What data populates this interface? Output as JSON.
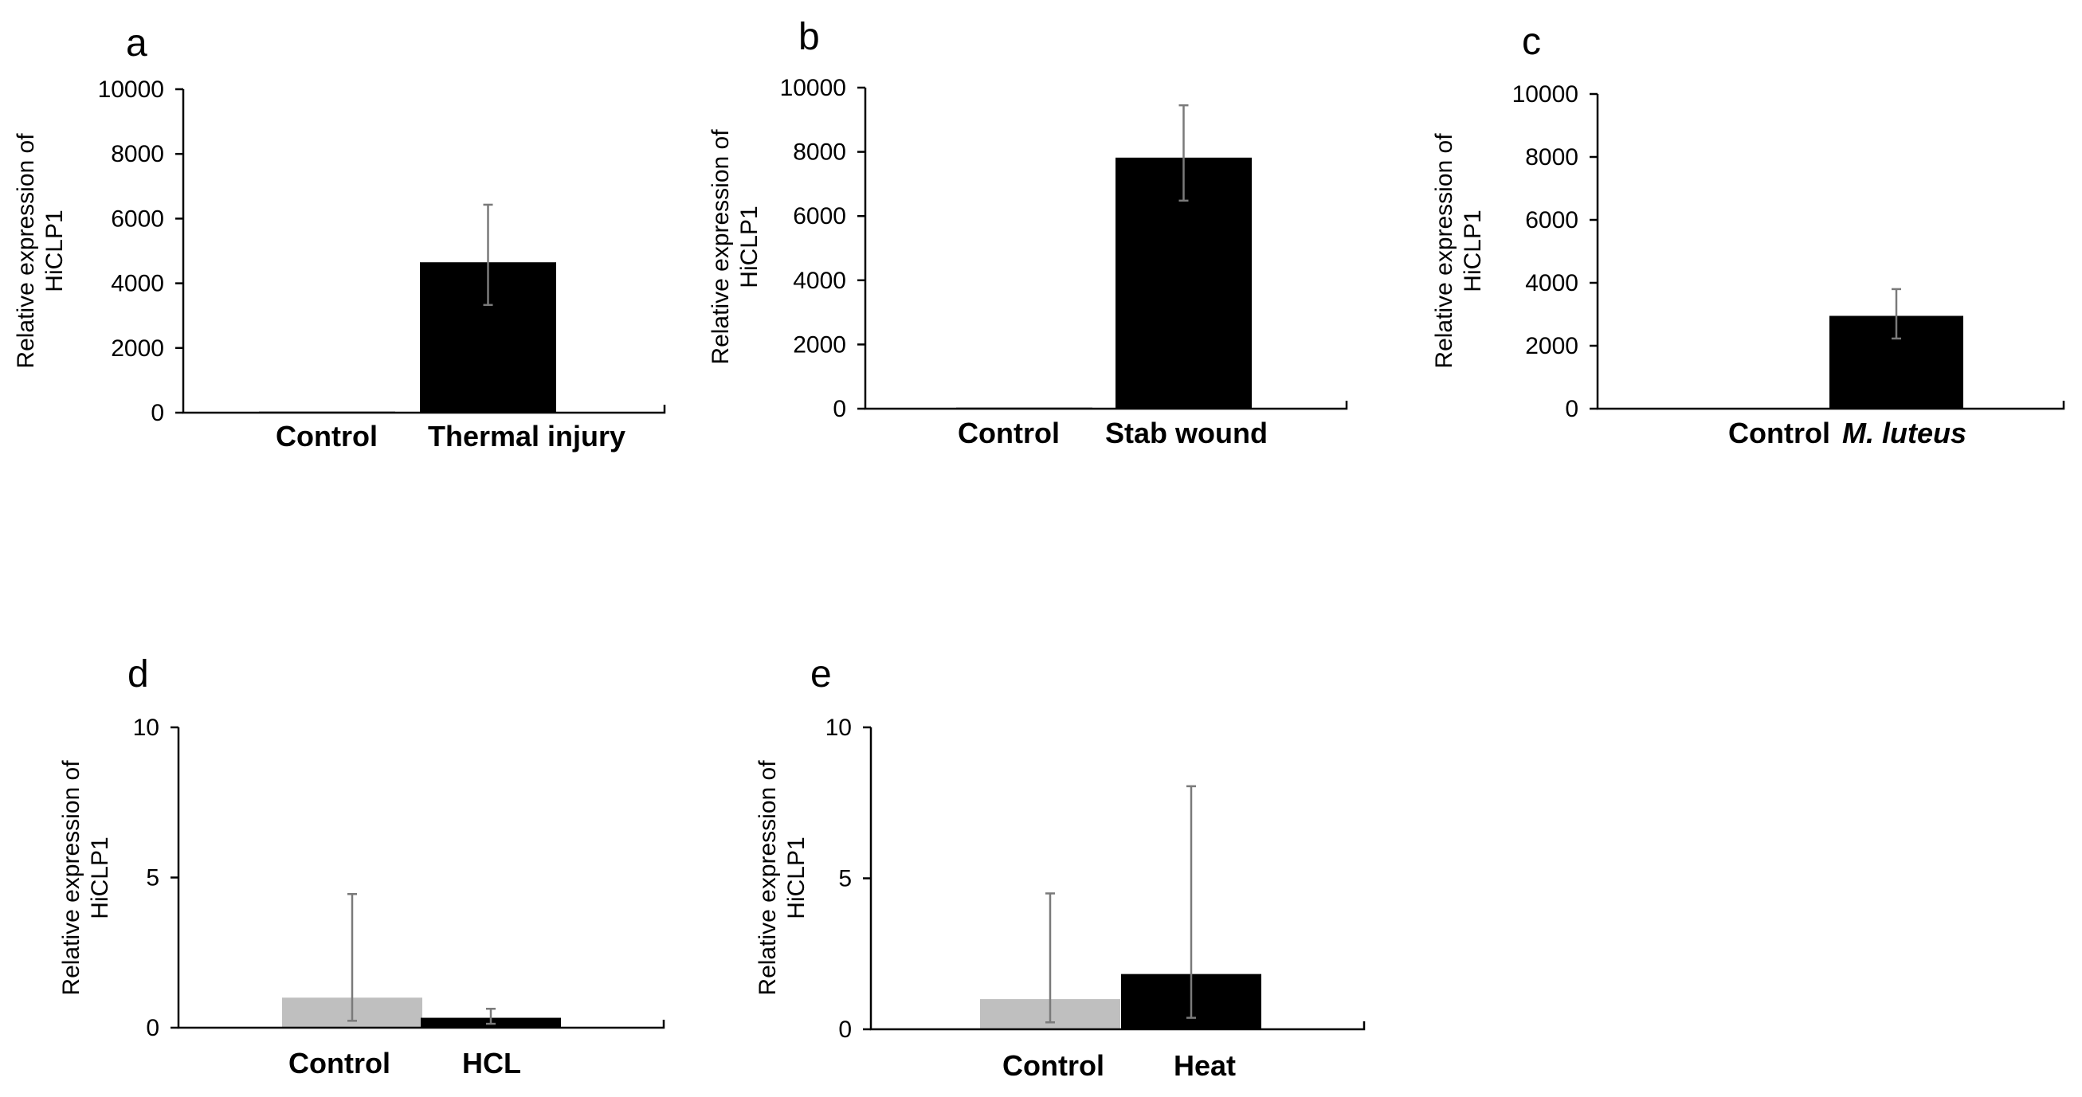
{
  "chart_data": [
    {
      "type": "bar",
      "panel_label": "a",
      "categories": [
        "Control",
        "Thermal injury"
      ],
      "values": [
        45,
        4650
      ],
      "error_low": [
        45,
        3330
      ],
      "error_high": [
        45,
        6430
      ],
      "bar_colors": [
        "#bfbfbf",
        "#000000"
      ],
      "italic_categories": [
        false,
        false
      ],
      "ylabel": [
        "Relative expression of",
        "HiCLP1"
      ],
      "yticks": [
        "0",
        "2000",
        "4000",
        "6000",
        "8000",
        "10000"
      ],
      "ytick_values": [
        0,
        2000,
        4000,
        6000,
        8000,
        10000
      ],
      "ylim": [
        0,
        10000
      ]
    },
    {
      "type": "bar",
      "panel_label": "b",
      "categories": [
        "Control",
        "Stab wound"
      ],
      "values": [
        45,
        7820
      ],
      "error_low": [
        45,
        6480
      ],
      "error_high": [
        45,
        9450
      ],
      "bar_colors": [
        "#bfbfbf",
        "#000000"
      ],
      "italic_categories": [
        false,
        false
      ],
      "ylabel": [
        "Relative expression of",
        "HiCLP1"
      ],
      "yticks": [
        "0",
        "2000",
        "4000",
        "6000",
        "8000",
        "10000"
      ],
      "ytick_values": [
        0,
        2000,
        4000,
        6000,
        8000,
        10000
      ],
      "ylim": [
        0,
        10000
      ]
    },
    {
      "type": "bar",
      "panel_label": "c",
      "categories": [
        "Control",
        "M. luteus"
      ],
      "values": [
        1,
        2950
      ],
      "error_low": [
        1,
        2230
      ],
      "error_high": [
        1,
        3800
      ],
      "bar_colors": [
        "#bfbfbf",
        "#000000"
      ],
      "italic_categories": [
        false,
        true
      ],
      "ylabel": [
        "Relative expression of",
        "HiCLP1"
      ],
      "yticks": [
        "0",
        "2000",
        "4000",
        "6000",
        "8000",
        "10000"
      ],
      "ytick_values": [
        0,
        2000,
        4000,
        6000,
        8000,
        10000
      ],
      "ylim": [
        0,
        10000
      ]
    },
    {
      "type": "bar",
      "panel_label": "d",
      "categories": [
        "Control",
        "HCL"
      ],
      "values": [
        1.0,
        0.33
      ],
      "error_low": [
        0.23,
        0.13
      ],
      "error_high": [
        4.45,
        0.63
      ],
      "bar_colors": [
        "#bfbfbf",
        "#000000"
      ],
      "italic_categories": [
        false,
        false
      ],
      "ylabel": [
        "Relative expression of",
        "HiCLP1"
      ],
      "yticks": [
        "0",
        "5",
        "10"
      ],
      "ytick_values": [
        0,
        5,
        10
      ],
      "ylim": [
        0,
        10
      ]
    },
    {
      "type": "bar",
      "panel_label": "e",
      "categories": [
        "Control",
        "Heat"
      ],
      "values": [
        1.0,
        1.83
      ],
      "error_low": [
        0.23,
        0.38
      ],
      "error_high": [
        4.5,
        8.05
      ],
      "bar_colors": [
        "#bfbfbf",
        "#000000"
      ],
      "italic_categories": [
        false,
        false
      ],
      "ylabel": [
        "Relative expression of",
        "HiCLP1"
      ],
      "yticks": [
        "0",
        "5",
        "10"
      ],
      "ytick_values": [
        0,
        5,
        10
      ],
      "ylim": [
        0,
        10
      ]
    }
  ]
}
